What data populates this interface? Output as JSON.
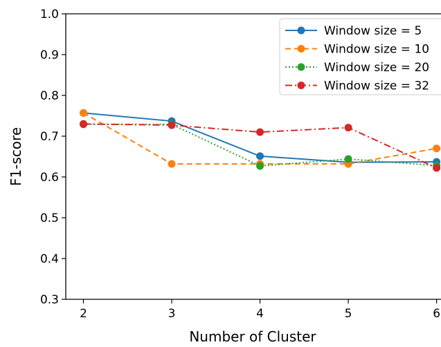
{
  "chart_data": {
    "type": "line",
    "title": "",
    "xlabel": "Number of Cluster",
    "ylabel": "F1-score",
    "x": [
      2,
      3,
      4,
      5,
      6
    ],
    "x_tick_labels": [
      "2",
      "3",
      "4",
      "5",
      "6"
    ],
    "xlim": [
      1.8,
      6.05
    ],
    "ylim": [
      0.3,
      1.0
    ],
    "y_tick_labels": [
      "0.3",
      "0.4",
      "0.5",
      "0.6",
      "0.7",
      "0.8",
      "0.9",
      "1.0"
    ],
    "grid": false,
    "legend_position": "top-right",
    "series": [
      {
        "name": "Window size = 5",
        "values": [
          0.757,
          0.737,
          0.651,
          0.636,
          0.637
        ],
        "color": "#1f77b4",
        "line_style": "solid"
      },
      {
        "name": "Window size = 10",
        "values": [
          0.757,
          0.632,
          0.632,
          0.632,
          0.67
        ],
        "color": "#ff7f0e",
        "line_style": "dashed"
      },
      {
        "name": "Window size = 20",
        "values": [
          0.729,
          0.729,
          0.627,
          0.644,
          0.628
        ],
        "color": "#2ca02c",
        "line_style": "dotted"
      },
      {
        "name": "Window size = 32",
        "values": [
          0.73,
          0.727,
          0.71,
          0.721,
          0.622
        ],
        "color": "#d62728",
        "line_style": "dashdot"
      }
    ]
  }
}
